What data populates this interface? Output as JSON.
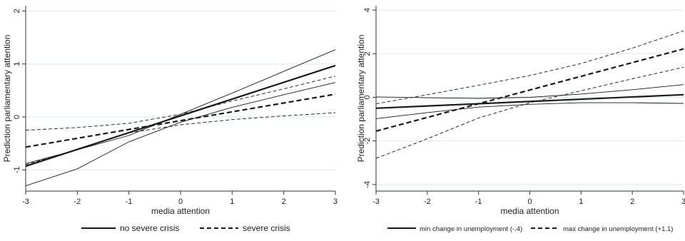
{
  "chart_data": [
    {
      "type": "line",
      "xlabel": "media attention",
      "ylabel": "Prediction parliamentary attention",
      "xlim": [
        -3,
        3
      ],
      "ylim": [
        -1.4,
        2.1
      ],
      "xticks": [
        -3,
        -2,
        -1,
        0,
        1,
        2,
        3
      ],
      "yticks": [
        -1,
        0,
        1,
        2
      ],
      "grid": "horizontal",
      "legend_position": "bottom",
      "series": [
        {
          "name": "no severe crisis",
          "style": "solid",
          "role": "estimate",
          "x": [
            -3,
            3
          ],
          "y": [
            -0.93,
            0.97
          ]
        },
        {
          "style": "solid-thin",
          "role": "upper-ci",
          "x": [
            -3,
            -2,
            -1,
            0,
            1,
            2,
            3
          ],
          "y": [
            -0.88,
            -0.62,
            -0.35,
            0.05,
            0.45,
            0.86,
            1.27
          ]
        },
        {
          "style": "solid-thin",
          "role": "lower-ci",
          "x": [
            -3,
            -2,
            -1,
            0,
            1,
            2,
            3
          ],
          "y": [
            -1.3,
            -0.98,
            -0.47,
            -0.1,
            0.18,
            0.42,
            0.65
          ]
        },
        {
          "name": "severe crisis",
          "style": "dashed",
          "role": "estimate",
          "x": [
            -3,
            3
          ],
          "y": [
            -0.57,
            0.43
          ]
        },
        {
          "style": "dashed-thin",
          "role": "upper-ci",
          "x": [
            -3,
            -2,
            -1,
            0,
            1,
            2,
            3
          ],
          "y": [
            -0.25,
            -0.2,
            -0.12,
            0.05,
            0.3,
            0.53,
            0.77
          ]
        },
        {
          "style": "dashed-thin",
          "role": "lower-ci",
          "x": [
            -3,
            -2,
            -1,
            0,
            1,
            2,
            3
          ],
          "y": [
            -0.9,
            -0.62,
            -0.3,
            -0.15,
            -0.05,
            0.02,
            0.08
          ]
        }
      ],
      "legend": [
        "no severe crisis",
        "severe crisis"
      ]
    },
    {
      "type": "line",
      "xlabel": "media attention",
      "ylabel": "Prediction parliamentary attention",
      "xlim": [
        -3,
        3
      ],
      "ylim": [
        -4.3,
        4.2
      ],
      "xticks": [
        -3,
        -2,
        -1,
        0,
        1,
        2,
        3
      ],
      "yticks": [
        -4,
        -2,
        0,
        2,
        4
      ],
      "grid": "horizontal",
      "legend_position": "bottom",
      "series": [
        {
          "name": "min change in unemployment (-.4)",
          "style": "solid",
          "role": "estimate",
          "x": [
            -3,
            3
          ],
          "y": [
            -0.5,
            0.12
          ]
        },
        {
          "style": "solid-thin",
          "role": "upper-ci",
          "x": [
            -3,
            -2,
            -1,
            0,
            1,
            2,
            3
          ],
          "y": [
            0.02,
            -0.02,
            -0.05,
            0.0,
            0.15,
            0.35,
            0.58
          ]
        },
        {
          "style": "solid-thin",
          "role": "lower-ci",
          "x": [
            -3,
            -2,
            -1,
            0,
            1,
            2,
            3
          ],
          "y": [
            -0.98,
            -0.7,
            -0.45,
            -0.32,
            -0.25,
            -0.25,
            -0.28
          ]
        },
        {
          "name": "max change in unemployment (+1.1)",
          "style": "dashed",
          "role": "estimate",
          "x": [
            -3,
            3
          ],
          "y": [
            -1.55,
            2.22
          ]
        },
        {
          "style": "dashed-thin",
          "role": "upper-ci",
          "x": [
            -3,
            -2,
            -1,
            0,
            1,
            2,
            3
          ],
          "y": [
            -0.3,
            0.12,
            0.55,
            1.0,
            1.55,
            2.25,
            3.05
          ]
        },
        {
          "style": "dashed-thin",
          "role": "lower-ci",
          "x": [
            -3,
            -2,
            -1,
            0,
            1,
            2,
            3
          ],
          "y": [
            -2.8,
            -1.9,
            -0.95,
            -0.25,
            0.3,
            0.85,
            1.38
          ]
        }
      ],
      "legend": [
        "min change in unemployment (-.4)",
        "max change in unemployment (+1.1)"
      ]
    }
  ],
  "colors": {
    "line": "#1a1a1a",
    "grid": "#d6ecec",
    "axis": "#333333"
  }
}
